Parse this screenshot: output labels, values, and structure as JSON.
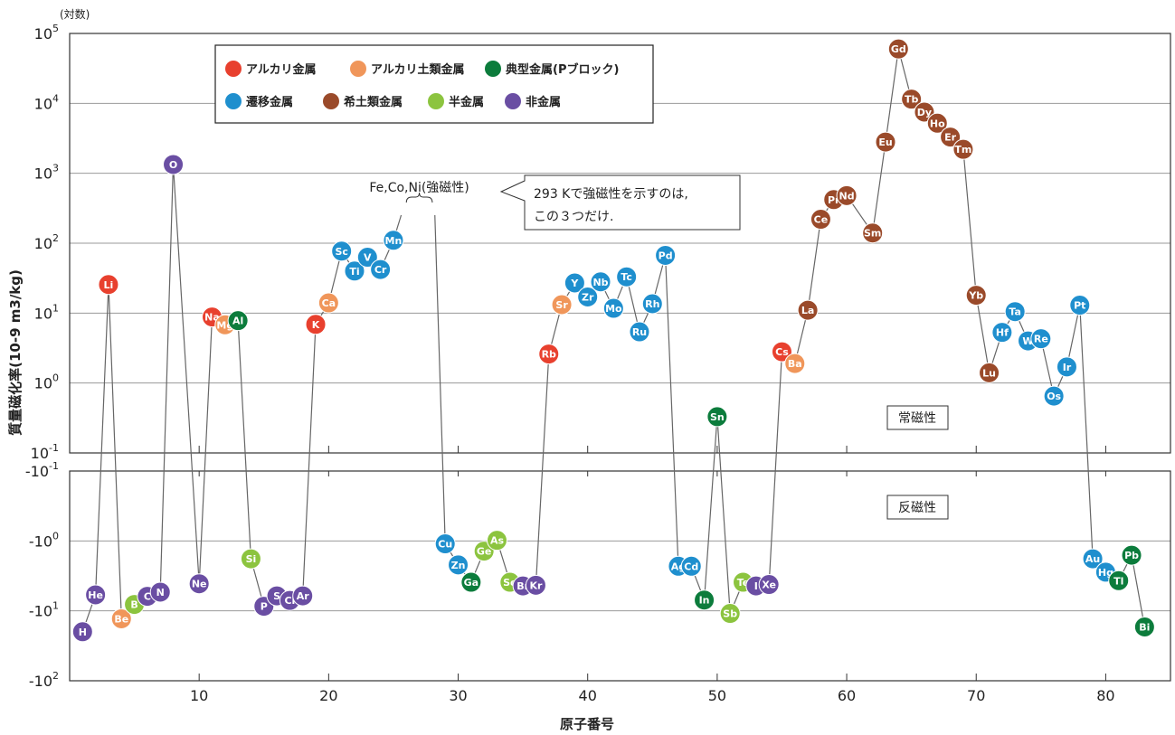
{
  "chart_data": {
    "type": "line",
    "xlabel": "原子番号",
    "ylabel": "質量磁化率(10-9 m3/kg)",
    "y_scale_note": "(対数)",
    "scale": "log (split: paramagnetic above, diamagnetic below)",
    "xlim": [
      0,
      85
    ],
    "x_ticks": [
      10,
      20,
      30,
      40,
      50,
      60,
      70,
      80
    ],
    "upper_axis": {
      "range_exp": [
        -1,
        5
      ],
      "tick_labels": [
        {
          "base": "10",
          "sup": "5"
        },
        {
          "base": "10",
          "sup": "4"
        },
        {
          "base": "10",
          "sup": "3"
        },
        {
          "base": "10",
          "sup": "2"
        },
        {
          "base": "10",
          "sup": "1"
        },
        {
          "base": "10",
          "sup": "0"
        },
        {
          "base": "10",
          "sup": "-1"
        }
      ]
    },
    "lower_axis": {
      "range_exp": [
        -1,
        2
      ],
      "tick_labels": [
        {
          "base": "-10",
          "sup": "-1"
        },
        {
          "base": "-10",
          "sup": "0"
        },
        {
          "base": "-10",
          "sup": "1"
        },
        {
          "base": "-10",
          "sup": "2"
        }
      ]
    },
    "legend": [
      {
        "name": "アルカリ金属",
        "color": "#e8402e"
      },
      {
        "name": "アルカリ土類金属",
        "color": "#f0965a"
      },
      {
        "name": "典型金属(Pブロック)",
        "color": "#0c7c3c"
      },
      {
        "name": "遷移金属",
        "color": "#1f8fce"
      },
      {
        "name": "希土類金属",
        "color": "#9a4a2a"
      },
      {
        "name": "半金属",
        "color": "#8cc43f"
      },
      {
        "name": "非金属",
        "color": "#6a4ea3"
      }
    ],
    "region_labels": {
      "para": "常磁性",
      "dia": "反磁性"
    },
    "ferro_label": "Fe,Co,Ni(強磁性)",
    "callout": [
      "293 Kで強磁性を示すのは,",
      "この３つだけ."
    ],
    "points": [
      {
        "z": 1,
        "sym": "H",
        "cat": "非金属",
        "value": -19.9
      },
      {
        "z": 2,
        "sym": "He",
        "cat": "非金属",
        "value": -5.9
      },
      {
        "z": 3,
        "sym": "Li",
        "cat": "アルカリ金属",
        "value": 25.6
      },
      {
        "z": 4,
        "sym": "Be",
        "cat": "アルカリ土類金属",
        "value": -13.0
      },
      {
        "z": 5,
        "sym": "B",
        "cat": "半金属",
        "value": -8.1
      },
      {
        "z": 6,
        "sym": "C",
        "cat": "非金属",
        "value": -6.2
      },
      {
        "z": 7,
        "sym": "N",
        "cat": "非金属",
        "value": -5.4
      },
      {
        "z": 8,
        "sym": "O",
        "cat": "非金属",
        "value": 1335
      },
      {
        "z": 10,
        "sym": "Ne",
        "cat": "非金属",
        "value": -4.1
      },
      {
        "z": 11,
        "sym": "Na",
        "cat": "アルカリ金属",
        "value": 8.8
      },
      {
        "z": 12,
        "sym": "Mg",
        "cat": "アルカリ土類金属",
        "value": 6.8
      },
      {
        "z": 13,
        "sym": "Al",
        "cat": "典型金属(Pブロック)",
        "value": 7.8
      },
      {
        "z": 14,
        "sym": "Si",
        "cat": "半金属",
        "value": -1.8
      },
      {
        "z": 15,
        "sym": "P",
        "cat": "非金属",
        "value": -8.6
      },
      {
        "z": 16,
        "sym": "S",
        "cat": "非金属",
        "value": -6.1
      },
      {
        "z": 17,
        "sym": "Cl",
        "cat": "非金属",
        "value": -7.1
      },
      {
        "z": 18,
        "sym": "Ar",
        "cat": "非金属",
        "value": -6.1
      },
      {
        "z": 19,
        "sym": "K",
        "cat": "アルカリ金属",
        "value": 6.9
      },
      {
        "z": 20,
        "sym": "Ca",
        "cat": "アルカリ土類金属",
        "value": 14.0
      },
      {
        "z": 21,
        "sym": "Sc",
        "cat": "遷移金属",
        "value": 77
      },
      {
        "z": 22,
        "sym": "Ti",
        "cat": "遷移金属",
        "value": 40
      },
      {
        "z": 23,
        "sym": "V",
        "cat": "遷移金属",
        "value": 63
      },
      {
        "z": 24,
        "sym": "Cr",
        "cat": "遷移金属",
        "value": 42
      },
      {
        "z": 25,
        "sym": "Mn",
        "cat": "遷移金属",
        "value": 110
      },
      {
        "z": 29,
        "sym": "Cu",
        "cat": "遷移金属",
        "value": -1.1
      },
      {
        "z": 30,
        "sym": "Zn",
        "cat": "遷移金属",
        "value": -2.2
      },
      {
        "z": 31,
        "sym": "Ga",
        "cat": "典型金属(Pブロック)",
        "value": -3.9
      },
      {
        "z": 32,
        "sym": "Ge",
        "cat": "半金属",
        "value": -1.4
      },
      {
        "z": 33,
        "sym": "As",
        "cat": "半金属",
        "value": -0.98
      },
      {
        "z": 34,
        "sym": "Se",
        "cat": "半金属",
        "value": -3.9
      },
      {
        "z": 35,
        "sym": "Br",
        "cat": "非金属",
        "value": -4.4
      },
      {
        "z": 36,
        "sym": "Kr",
        "cat": "非金属",
        "value": -4.3
      },
      {
        "z": 37,
        "sym": "Rb",
        "cat": "アルカリ金属",
        "value": 2.6
      },
      {
        "z": 38,
        "sym": "Sr",
        "cat": "アルカリ土類金属",
        "value": 13.2
      },
      {
        "z": 39,
        "sym": "Y",
        "cat": "遷移金属",
        "value": 27
      },
      {
        "z": 40,
        "sym": "Zr",
        "cat": "遷移金属",
        "value": 17
      },
      {
        "z": 41,
        "sym": "Nb",
        "cat": "遷移金属",
        "value": 28
      },
      {
        "z": 42,
        "sym": "Mo",
        "cat": "遷移金属",
        "value": 11.7
      },
      {
        "z": 43,
        "sym": "Tc",
        "cat": "遷移金属",
        "value": 33
      },
      {
        "z": 44,
        "sym": "Ru",
        "cat": "遷移金属",
        "value": 5.4
      },
      {
        "z": 45,
        "sym": "Rh",
        "cat": "遷移金属",
        "value": 13.6
      },
      {
        "z": 46,
        "sym": "Pd",
        "cat": "遷移金属",
        "value": 67
      },
      {
        "z": 47,
        "sym": "Ag",
        "cat": "遷移金属",
        "value": -2.3
      },
      {
        "z": 48,
        "sym": "Cd",
        "cat": "遷移金属",
        "value": -2.3
      },
      {
        "z": 49,
        "sym": "In",
        "cat": "典型金属(Pブロック)",
        "value": -7.0
      },
      {
        "z": 50,
        "sym": "Sn",
        "cat": "典型金属(Pブロック)",
        "value": 0.33
      },
      {
        "z": 51,
        "sym": "Sb",
        "cat": "半金属",
        "value": -10.9
      },
      {
        "z": 52,
        "sym": "Te",
        "cat": "半金属",
        "value": -3.9
      },
      {
        "z": 53,
        "sym": "I",
        "cat": "非金属",
        "value": -4.4
      },
      {
        "z": 54,
        "sym": "Xe",
        "cat": "非金属",
        "value": -4.2
      },
      {
        "z": 55,
        "sym": "Cs",
        "cat": "アルカリ金属",
        "value": 2.8
      },
      {
        "z": 56,
        "sym": "Ba",
        "cat": "アルカリ土類金属",
        "value": 1.9
      },
      {
        "z": 57,
        "sym": "La",
        "cat": "希土類金属",
        "value": 11
      },
      {
        "z": 58,
        "sym": "Ce",
        "cat": "希土類金属",
        "value": 220
      },
      {
        "z": 59,
        "sym": "Pr",
        "cat": "希土類金属",
        "value": 420
      },
      {
        "z": 60,
        "sym": "Nd",
        "cat": "希土類金属",
        "value": 480
      },
      {
        "z": 62,
        "sym": "Sm",
        "cat": "希土類金属",
        "value": 140
      },
      {
        "z": 63,
        "sym": "Eu",
        "cat": "希土類金属",
        "value": 2800
      },
      {
        "z": 64,
        "sym": "Gd",
        "cat": "希土類金属",
        "value": 60000
      },
      {
        "z": 65,
        "sym": "Tb",
        "cat": "希土類金属",
        "value": 11500
      },
      {
        "z": 66,
        "sym": "Dy",
        "cat": "希土類金属",
        "value": 7500
      },
      {
        "z": 67,
        "sym": "Ho",
        "cat": "希土類金属",
        "value": 5200
      },
      {
        "z": 68,
        "sym": "Er",
        "cat": "希土類金属",
        "value": 3300
      },
      {
        "z": 69,
        "sym": "Tm",
        "cat": "希土類金属",
        "value": 2200
      },
      {
        "z": 70,
        "sym": "Yb",
        "cat": "希土類金属",
        "value": 18
      },
      {
        "z": 71,
        "sym": "Lu",
        "cat": "希土類金属",
        "value": 1.4
      },
      {
        "z": 72,
        "sym": "Hf",
        "cat": "遷移金属",
        "value": 5.3
      },
      {
        "z": 73,
        "sym": "Ta",
        "cat": "遷移金属",
        "value": 10.5
      },
      {
        "z": 74,
        "sym": "W",
        "cat": "遷移金属",
        "value": 4.0
      },
      {
        "z": 75,
        "sym": "Re",
        "cat": "遷移金属",
        "value": 4.3
      },
      {
        "z": 76,
        "sym": "Os",
        "cat": "遷移金属",
        "value": 0.65
      },
      {
        "z": 77,
        "sym": "Ir",
        "cat": "遷移金属",
        "value": 1.7
      },
      {
        "z": 78,
        "sym": "Pt",
        "cat": "遷移金属",
        "value": 13.0
      },
      {
        "z": 79,
        "sym": "Au",
        "cat": "遷移金属",
        "value": -1.8
      },
      {
        "z": 80,
        "sym": "Hg",
        "cat": "遷移金属",
        "value": -2.8
      },
      {
        "z": 81,
        "sym": "Tl",
        "cat": "典型金属(Pブロック)",
        "value": -3.7
      },
      {
        "z": 82,
        "sym": "Pb",
        "cat": "典型金属(Pブロック)",
        "value": -1.6
      },
      {
        "z": 83,
        "sym": "Bi",
        "cat": "典型金属(Pブロック)",
        "value": -17.0
      }
    ]
  }
}
